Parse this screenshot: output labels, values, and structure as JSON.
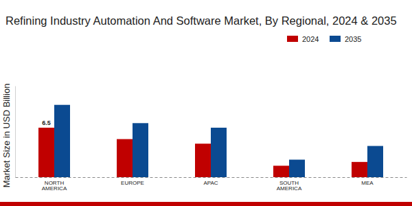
{
  "chart_data": {
    "type": "bar",
    "title": "Refining Industry Automation And Software Market, By Regional, 2024 & 2035",
    "y_label": "Market Size in USD Billion",
    "categories": [
      "NORTH AMERICA",
      "EUROPE",
      "APAC",
      "SOUTH AMERICA",
      "MEA"
    ],
    "series": [
      {
        "name": "2024",
        "color": "#c00000",
        "values": [
          6.5,
          5.0,
          4.4,
          1.5,
          2.0
        ],
        "value_labels": [
          "6.5",
          null,
          null,
          null,
          null
        ]
      },
      {
        "name": "2035",
        "color": "#0b4a91",
        "values": [
          9.5,
          7.1,
          6.5,
          2.3,
          4.1
        ]
      }
    ],
    "ylim": [
      0,
      12
    ],
    "yticks": [],
    "tick_labels": "x",
    "grid": false,
    "legend": "upper right"
  }
}
